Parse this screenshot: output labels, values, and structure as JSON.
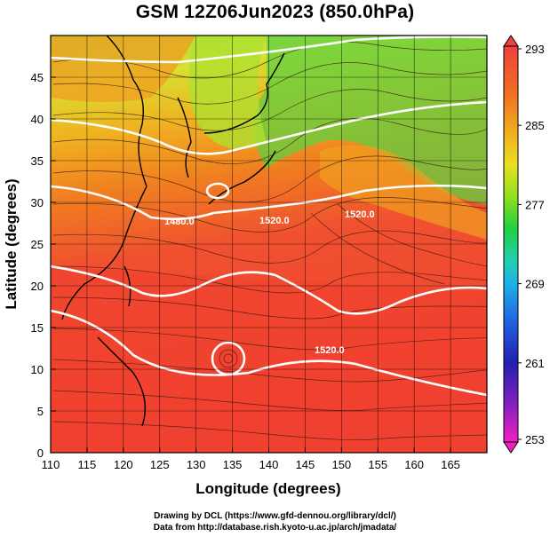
{
  "title": "GSM 12Z06Jun2023 (850.0hPa)",
  "axes": {
    "xlabel": "Longitude (degrees)",
    "ylabel": "Latitude  (degrees)",
    "xticks": [
      "110",
      "115",
      "120",
      "125",
      "130",
      "135",
      "140",
      "145",
      "150",
      "155",
      "160",
      "165"
    ],
    "yticks": [
      "0",
      "5",
      "10",
      "15",
      "20",
      "25",
      "30",
      "35",
      "40",
      "45"
    ]
  },
  "colorbar": {
    "ticks": [
      "293",
      "285",
      "277",
      "269",
      "261",
      "253"
    ],
    "colors": [
      "#f05040",
      "#f07020",
      "#f0a020",
      "#e8d020",
      "#a8e020",
      "#30d040",
      "#20d0a0",
      "#20b0e0",
      "#2060e0",
      "#2020b0",
      "#8020c0",
      "#e020c0"
    ]
  },
  "contour_labels": [
    "1480.0",
    "1520.0",
    "1520.0",
    "1520.0"
  ],
  "credits": {
    "line1": "Drawing by DCL (https://www.gfd-dennou.org/library/dcl/)",
    "line2": "Data from http://database.rish.kyoto-u.ac.jp/arch/jmadata/"
  },
  "colors": {
    "warm": "#f04030",
    "orange": "#f08020",
    "yellow": "#e8d020",
    "green": "#70d040",
    "contour": "#ffffff",
    "coast": "#000000"
  }
}
